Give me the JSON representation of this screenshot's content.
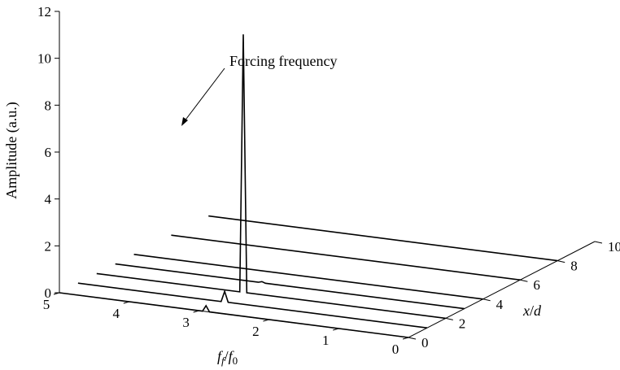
{
  "chart_data": {
    "type": "line",
    "subtype": "3d-waterfall",
    "title": "",
    "ylabel": "Amplitude (a.u.)",
    "xlabel_parts": {
      "f": "f",
      "sub1": "f",
      "slash": "/",
      "f2": "f",
      "sub2": "0"
    },
    "zlabel_parts": {
      "x": "x",
      "slash": "/",
      "d": "d"
    },
    "amplitude_axis": {
      "range": [
        0,
        12
      ],
      "ticks": [
        0,
        2,
        4,
        6,
        8,
        10,
        12
      ]
    },
    "frequency_axis": {
      "range": [
        0,
        5
      ],
      "ticks": [
        0,
        1,
        2,
        3,
        4,
        5
      ],
      "reversed": true
    },
    "position_axis": {
      "range": [
        0,
        10
      ],
      "ticks": [
        0,
        2,
        4,
        6,
        8,
        10
      ]
    },
    "series": [
      {
        "x_d": 0,
        "peaks": [
          {
            "freq": 2.9,
            "amplitude": 0.25
          }
        ]
      },
      {
        "x_d": 1,
        "peaks": [
          {
            "freq": 2.9,
            "amplitude": 0.45
          }
        ]
      },
      {
        "x_d": 2,
        "peaks": [
          {
            "freq": 2.9,
            "amplitude": 11.0
          }
        ]
      },
      {
        "x_d": 3,
        "peaks": [
          {
            "freq": 2.9,
            "amplitude": 0.05
          }
        ]
      },
      {
        "x_d": 4,
        "peaks": []
      },
      {
        "x_d": 6,
        "peaks": []
      },
      {
        "x_d": 8,
        "peaks": []
      }
    ],
    "annotation": {
      "text": "Forcing frequency",
      "target": {
        "x_d": 2,
        "freq": 2.9,
        "amplitude": 7.6
      }
    }
  }
}
